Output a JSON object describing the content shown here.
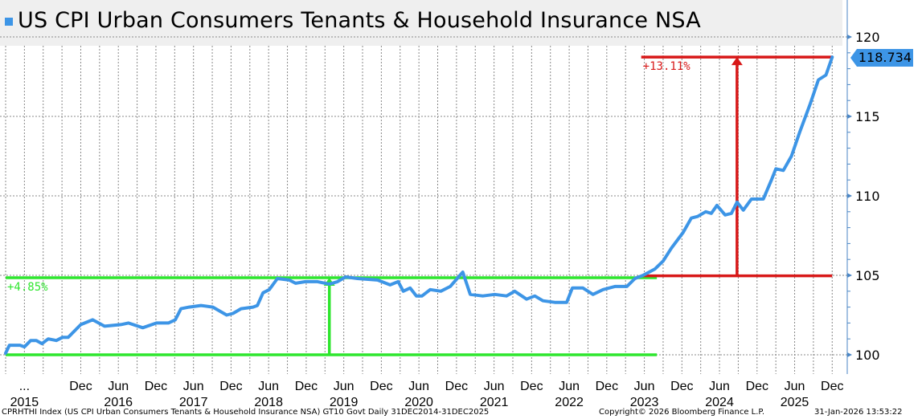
{
  "title": "US CPI Urban Consumers Tenants & Household Insurance NSA",
  "last_value_label": "118.734",
  "footer": {
    "left": "CPRHTHI Index (US CPI Urban Consumers Tenants & Household Insurance NSA) GT10  Govt Daily 31DEC2014-31DEC2025",
    "middle": "Copyright© 2026 Bloomberg Finance L.P.",
    "right": "31-Jan-2026 13:53:22"
  },
  "colors": {
    "series": "#3d95e6",
    "green": "#2ee62e",
    "red": "#d81818",
    "grid": "#888888",
    "axis": "#4a86c5"
  },
  "chart_data": {
    "type": "line",
    "title": "US CPI Urban Consumers Tenants & Household Insurance NSA",
    "x_unit": "months since Dec 2014",
    "xlim": [
      0,
      132
    ],
    "ylim": [
      99,
      122
    ],
    "yticks": [
      100,
      105,
      110,
      115,
      120
    ],
    "ytick_labels": [
      "100",
      "105",
      "110",
      "115",
      "120"
    ],
    "grid": true,
    "x_tick_labels_month": [
      "...",
      "Dec",
      "Jun",
      "Dec",
      "Jun",
      "Dec",
      "Jun",
      "Dec",
      "Jun",
      "Dec",
      "Jun",
      "Dec",
      "Jun",
      "Dec",
      "Jun",
      "Dec",
      "Jun",
      "Dec",
      "Jun",
      "Dec",
      "Jun",
      "Dec"
    ],
    "x_tick_positions_month": [
      3,
      12,
      18,
      24,
      30,
      36,
      42,
      48,
      54,
      60,
      66,
      72,
      78,
      84,
      90,
      96,
      102,
      108,
      114,
      120,
      126,
      132
    ],
    "x_tick_labels_year": [
      "2015",
      "2016",
      "2017",
      "2018",
      "2019",
      "2020",
      "2021",
      "2022",
      "2023",
      "2024",
      "2025"
    ],
    "x_tick_positions_year": [
      3,
      18,
      30,
      42,
      54,
      66,
      78,
      90,
      102,
      114,
      126
    ],
    "series": [
      {
        "name": "CPRHTHI Index",
        "points": [
          [
            0,
            100.1
          ],
          [
            0.6,
            100.6
          ],
          [
            2.3,
            100.6
          ],
          [
            3,
            100.5
          ],
          [
            4,
            100.9
          ],
          [
            4.9,
            100.9
          ],
          [
            5.8,
            100.7
          ],
          [
            6.8,
            101.0
          ],
          [
            8.1,
            100.9
          ],
          [
            9.1,
            101.1
          ],
          [
            10,
            101.1
          ],
          [
            12,
            101.9
          ],
          [
            13.9,
            102.2
          ],
          [
            15.8,
            101.8
          ],
          [
            18.4,
            101.9
          ],
          [
            19.6,
            102.0
          ],
          [
            21.9,
            101.7
          ],
          [
            24.1,
            102.0
          ],
          [
            26,
            102.0
          ],
          [
            27.1,
            102.2
          ],
          [
            28,
            102.9
          ],
          [
            29.3,
            103.0
          ],
          [
            31.2,
            103.1
          ],
          [
            33.1,
            103.0
          ],
          [
            35.3,
            102.5
          ],
          [
            36.3,
            102.6
          ],
          [
            37.6,
            102.9
          ],
          [
            39.5,
            103.0
          ],
          [
            40.2,
            103.1
          ],
          [
            41.1,
            103.9
          ],
          [
            42.1,
            104.1
          ],
          [
            43.4,
            104.8
          ],
          [
            45.3,
            104.7
          ],
          [
            46.3,
            104.5
          ],
          [
            47.9,
            104.6
          ],
          [
            49.8,
            104.6
          ],
          [
            51.7,
            104.45
          ],
          [
            53,
            104.6
          ],
          [
            54.3,
            104.9
          ],
          [
            56.2,
            104.8
          ],
          [
            59.4,
            104.7
          ],
          [
            61.4,
            104.4
          ],
          [
            62.7,
            104.6
          ],
          [
            63.5,
            104.0
          ],
          [
            64.6,
            104.2
          ],
          [
            65.6,
            103.7
          ],
          [
            66.5,
            103.7
          ],
          [
            67.8,
            104.1
          ],
          [
            69.5,
            104.0
          ],
          [
            71,
            104.3
          ],
          [
            73,
            105.2
          ],
          [
            74.2,
            103.8
          ],
          [
            76.2,
            103.7
          ],
          [
            78.1,
            103.8
          ],
          [
            80,
            103.7
          ],
          [
            81.3,
            104.0
          ],
          [
            83.2,
            103.5
          ],
          [
            84.5,
            103.7
          ],
          [
            85.8,
            103.4
          ],
          [
            87.7,
            103.3
          ],
          [
            89.6,
            103.3
          ],
          [
            90.5,
            104.2
          ],
          [
            92.2,
            104.2
          ],
          [
            93.8,
            103.8
          ],
          [
            95.4,
            104.1
          ],
          [
            97.3,
            104.3
          ],
          [
            99.2,
            104.3
          ],
          [
            100.5,
            104.8
          ],
          [
            101.8,
            105.0
          ],
          [
            103.7,
            105.4
          ],
          [
            105,
            105.9
          ],
          [
            106.3,
            106.7
          ],
          [
            108.2,
            107.7
          ],
          [
            109.5,
            108.6
          ],
          [
            110.5,
            108.7
          ],
          [
            111.8,
            109.0
          ],
          [
            112.7,
            108.9
          ],
          [
            113.6,
            109.4
          ],
          [
            114.9,
            108.8
          ],
          [
            115.9,
            108.9
          ],
          [
            116.8,
            109.6
          ],
          [
            117.8,
            109.1
          ],
          [
            119.1,
            109.8
          ],
          [
            121,
            109.8
          ],
          [
            122.3,
            111.0
          ],
          [
            123,
            111.7
          ],
          [
            124.2,
            111.6
          ],
          [
            125.5,
            112.5
          ],
          [
            126.8,
            114.0
          ],
          [
            128.5,
            115.8
          ],
          [
            129.8,
            117.3
          ],
          [
            131,
            117.6
          ],
          [
            132,
            118.734
          ]
        ]
      }
    ],
    "annotations": [
      {
        "name": "green-range",
        "color": "green",
        "label": "+4.85%",
        "low": 100.0,
        "high": 104.85,
        "x_start": 0,
        "x_end": 104,
        "arrow_x": 51.7
      },
      {
        "name": "red-range",
        "color": "red",
        "label": "+13.11%",
        "low": 104.97,
        "high": 118.734,
        "x_start": 101.5,
        "x_end": 132,
        "arrow_x": 116.8
      }
    ]
  }
}
